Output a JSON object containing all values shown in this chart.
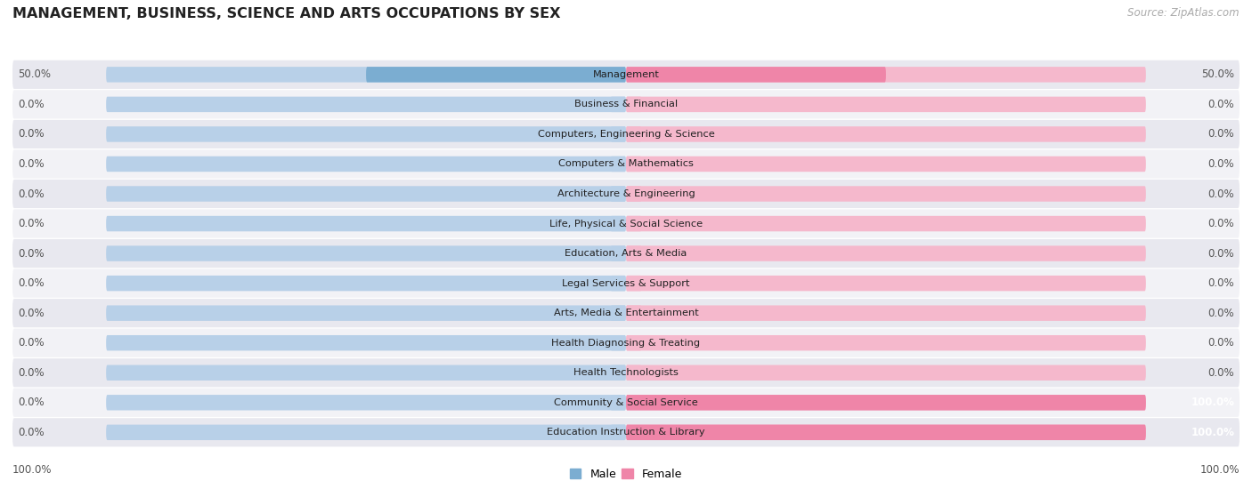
{
  "title": "MANAGEMENT, BUSINESS, SCIENCE AND ARTS OCCUPATIONS BY SEX",
  "source": "Source: ZipAtlas.com",
  "categories": [
    "Management",
    "Business & Financial",
    "Computers, Engineering & Science",
    "Computers & Mathematics",
    "Architecture & Engineering",
    "Life, Physical & Social Science",
    "Education, Arts & Media",
    "Legal Services & Support",
    "Arts, Media & Entertainment",
    "Health Diagnosing & Treating",
    "Health Technologists",
    "Community & Social Service",
    "Education Instruction & Library"
  ],
  "male_values": [
    50.0,
    0.0,
    0.0,
    0.0,
    0.0,
    0.0,
    0.0,
    0.0,
    0.0,
    0.0,
    0.0,
    0.0,
    0.0
  ],
  "female_values": [
    50.0,
    0.0,
    0.0,
    0.0,
    0.0,
    0.0,
    0.0,
    0.0,
    0.0,
    0.0,
    0.0,
    100.0,
    100.0
  ],
  "male_color": "#7badd1",
  "female_color": "#ef85a8",
  "male_color_light": "#b8d0e8",
  "female_color_light": "#f5b8cc",
  "row_bg_dark": "#e8e8ef",
  "row_bg_light": "#f2f2f6",
  "bar_height": 0.52,
  "xlim": 100,
  "legend_male": "Male",
  "legend_female": "Female",
  "value_label_color": "#555555",
  "value_label_color_on_bar": "#ffffff",
  "min_stub": 3.0
}
